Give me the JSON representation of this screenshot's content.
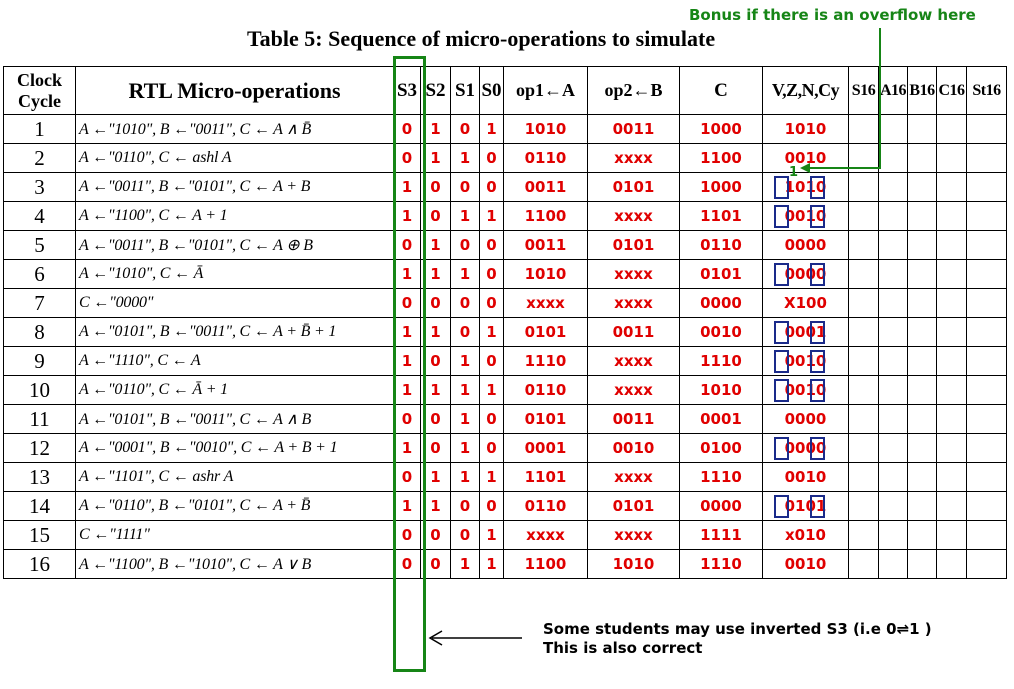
{
  "title": "Table 5: Sequence of micro-operations to simulate",
  "bonus_note": "Bonus if there is an overflow here",
  "bonus_mark": "1",
  "student_note": {
    "line1": "Some students may use inverted S3 (i.e 0⇌1 )",
    "line2": "This is also correct"
  },
  "colors": {
    "values": "#e00000",
    "annotation": "#168516",
    "flag_boxes": "#1a2a8a"
  },
  "headers": {
    "clock": "Clock Cycle",
    "rtl": "RTL Micro-operations",
    "s3": "S3",
    "s2": "S2",
    "s1": "S1",
    "s0": "S0",
    "op1": "op1←A",
    "op2": "op2←B",
    "c": "C",
    "flags": "V,Z,N,Cy",
    "s16": "S16",
    "a16": "A16",
    "b16": "B16",
    "c16": "C16",
    "st16": "St16"
  },
  "rows": [
    {
      "cycle": "1",
      "rtl": "A ←\"1010\", B ←\"0011\", C ← A ∧ B̄",
      "s3": "0",
      "s2": "1",
      "s1": "0",
      "s0": "1",
      "op1": "1010",
      "op2": "0011",
      "c": "1000",
      "flags": "1010"
    },
    {
      "cycle": "2",
      "rtl": "A ←\"0110\", C ← ashl A",
      "s3": "0",
      "s2": "1",
      "s1": "1",
      "s0": "0",
      "op1": "0110",
      "op2": "xxxx",
      "c": "1100",
      "flags": "0010"
    },
    {
      "cycle": "3",
      "rtl": "A ←\"0011\", B ←\"0101\", C ← A + B",
      "s3": "1",
      "s2": "0",
      "s1": "0",
      "s0": "0",
      "op1": "0011",
      "op2": "0101",
      "c": "1000",
      "flags": "1010"
    },
    {
      "cycle": "4",
      "rtl": "A ←\"1100\", C ← A + 1",
      "s3": "1",
      "s2": "0",
      "s1": "1",
      "s0": "1",
      "op1": "1100",
      "op2": "xxxx",
      "c": "1101",
      "flags": "0010"
    },
    {
      "cycle": "5",
      "rtl": "A ←\"0011\", B ←\"0101\", C ← A ⊕ B",
      "s3": "0",
      "s2": "1",
      "s1": "0",
      "s0": "0",
      "op1": "0011",
      "op2": "0101",
      "c": "0110",
      "flags": "0000"
    },
    {
      "cycle": "6",
      "rtl": "A ←\"1010\", C ← Ā",
      "s3": "1",
      "s2": "1",
      "s1": "1",
      "s0": "0",
      "op1": "1010",
      "op2": "xxxx",
      "c": "0101",
      "flags": "0000"
    },
    {
      "cycle": "7",
      "rtl": "C ←\"0000\"",
      "s3": "0",
      "s2": "0",
      "s1": "0",
      "s0": "0",
      "op1": "xxxx",
      "op2": "xxxx",
      "c": "0000",
      "flags": "X100"
    },
    {
      "cycle": "8",
      "rtl": "A ←\"0101\", B ←\"0011\", C ← A + B̄ + 1",
      "s3": "1",
      "s2": "1",
      "s1": "0",
      "s0": "1",
      "op1": "0101",
      "op2": "0011",
      "c": "0010",
      "flags": "0001"
    },
    {
      "cycle": "9",
      "rtl": "A ←\"1110\", C ← A",
      "s3": "1",
      "s2": "0",
      "s1": "1",
      "s0": "0",
      "op1": "1110",
      "op2": "xxxx",
      "c": "1110",
      "flags": "0010"
    },
    {
      "cycle": "10",
      "rtl": "A ←\"0110\", C ← Ā + 1",
      "s3": "1",
      "s2": "1",
      "s1": "1",
      "s0": "1",
      "op1": "0110",
      "op2": "xxxx",
      "c": "1010",
      "flags": "0010"
    },
    {
      "cycle": "11",
      "rtl": "A ←\"0101\", B ←\"0011\", C ← A ∧ B",
      "s3": "0",
      "s2": "0",
      "s1": "1",
      "s0": "0",
      "op1": "0101",
      "op2": "0011",
      "c": "0001",
      "flags": "0000"
    },
    {
      "cycle": "12",
      "rtl": "A ←\"0001\", B ←\"0010\", C ← A + B + 1",
      "s3": "1",
      "s2": "0",
      "s1": "1",
      "s0": "0",
      "op1": "0001",
      "op2": "0010",
      "c": "0100",
      "flags": "0000"
    },
    {
      "cycle": "13",
      "rtl": "A ←\"1101\", C ← ashr A",
      "s3": "0",
      "s2": "1",
      "s1": "1",
      "s0": "1",
      "op1": "1101",
      "op2": "xxxx",
      "c": "1110",
      "flags": "0010"
    },
    {
      "cycle": "14",
      "rtl": "A ←\"0110\", B ←\"0101\", C ← A + B̄",
      "s3": "1",
      "s2": "1",
      "s1": "0",
      "s0": "0",
      "op1": "0110",
      "op2": "0101",
      "c": "0000",
      "flags": "0101"
    },
    {
      "cycle": "15",
      "rtl": "C ←\"1111\"",
      "s3": "0",
      "s2": "0",
      "s1": "0",
      "s0": "1",
      "op1": "xxxx",
      "op2": "xxxx",
      "c": "1111",
      "flags": "x010"
    },
    {
      "cycle": "16",
      "rtl": "A ←\"1100\", B ←\"1010\", C ← A ∨ B",
      "s3": "0",
      "s2": "0",
      "s1": "1",
      "s0": "1",
      "op1": "1100",
      "op2": "1010",
      "c": "1110",
      "flags": "0010"
    }
  ],
  "boxed_flag_rows": [
    "3",
    "4",
    "6",
    "8",
    "9",
    "10",
    "12",
    "14"
  ]
}
